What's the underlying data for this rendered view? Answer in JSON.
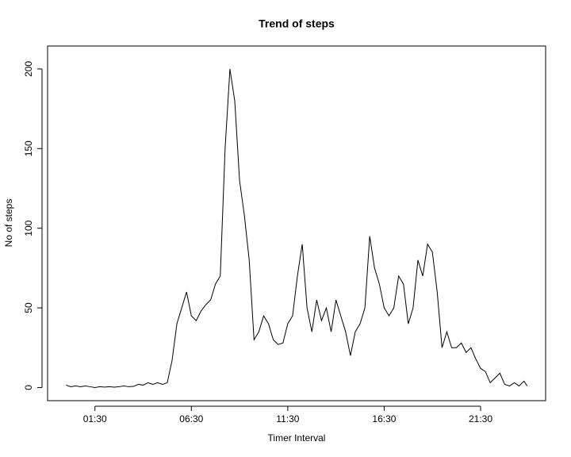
{
  "chart_data": {
    "type": "line",
    "title": "Trend of steps",
    "xlabel": "Timer Interval",
    "ylabel": "No of steps",
    "x": [
      0,
      15,
      30,
      45,
      60,
      75,
      90,
      105,
      120,
      135,
      150,
      165,
      180,
      195,
      210,
      225,
      240,
      255,
      270,
      285,
      300,
      315,
      330,
      345,
      360,
      375,
      390,
      405,
      420,
      435,
      450,
      465,
      480,
      495,
      510,
      525,
      540,
      555,
      570,
      585,
      600,
      615,
      630,
      645,
      660,
      675,
      690,
      705,
      720,
      735,
      750,
      765,
      780,
      795,
      810,
      825,
      840,
      855,
      870,
      885,
      900,
      915,
      930,
      945,
      960,
      975,
      990,
      1005,
      1020,
      1035,
      1050,
      1065,
      1080,
      1095,
      1110,
      1125,
      1140,
      1155,
      1170,
      1185,
      1200,
      1215,
      1230,
      1245,
      1260,
      1275,
      1290,
      1305,
      1320,
      1335,
      1350,
      1365,
      1380,
      1395,
      1410,
      1425,
      1435
    ],
    "series": [
      {
        "color": "#000000",
        "values": [
          1.5,
          0.5,
          1,
          0.5,
          1,
          0.5,
          0,
          0.5,
          0.3,
          0.5,
          0.2,
          0.5,
          1,
          0.5,
          0.7,
          2,
          1.5,
          3,
          2,
          3,
          2,
          3,
          17,
          40,
          50,
          60,
          45,
          42,
          48,
          52,
          55,
          65,
          70,
          150,
          200,
          180,
          130,
          108,
          80,
          30,
          35,
          45,
          40,
          30,
          27,
          28,
          40,
          45,
          70,
          90,
          50,
          35,
          55,
          42,
          50,
          35,
          55,
          45,
          35,
          20,
          35,
          40,
          50,
          95,
          75,
          65,
          50,
          45,
          50,
          70,
          65,
          40,
          50,
          80,
          70,
          90,
          85,
          60,
          25,
          35,
          25,
          25,
          28,
          22,
          25,
          18,
          12,
          10,
          3,
          6,
          9,
          2,
          1,
          3,
          1,
          4,
          1
        ]
      }
    ],
    "xlim": [
      -57.4,
      1492.4
    ],
    "ylim": [
      -8.25,
      214.4
    ],
    "xticks": [
      {
        "value": 90,
        "label": "01:30"
      },
      {
        "value": 390,
        "label": "06:30"
      },
      {
        "value": 690,
        "label": "11:30"
      },
      {
        "value": 990,
        "label": "16:30"
      },
      {
        "value": 1290,
        "label": "21:30"
      }
    ],
    "yticks": [
      0,
      50,
      100,
      150,
      200
    ]
  }
}
